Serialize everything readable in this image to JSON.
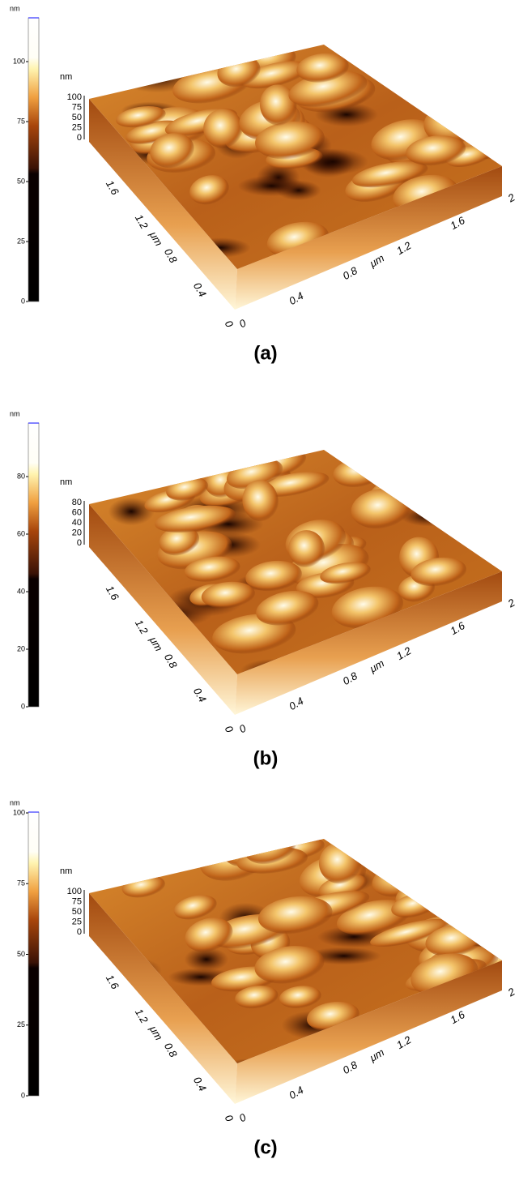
{
  "panels": [
    {
      "colorbar": {
        "unit": "nm",
        "ticks": [
          0,
          25,
          50,
          75,
          100
        ]
      },
      "z_axis": {
        "unit": "nm",
        "ticks": [
          0,
          25,
          50,
          75,
          100
        ]
      },
      "y_axis": {
        "label": "μm",
        "ticks": [
          0,
          0.4,
          0.8,
          1.2,
          1.6
        ]
      },
      "x_axis": {
        "label": "μm",
        "ticks": [
          0,
          0.4,
          0.8,
          1.2,
          1.6,
          2
        ]
      },
      "caption": "(a)"
    },
    {
      "colorbar": {
        "unit": "nm",
        "ticks": [
          0,
          20,
          40,
          60,
          80
        ]
      },
      "z_axis": {
        "unit": "nm",
        "ticks": [
          0,
          20,
          40,
          60,
          80
        ]
      },
      "y_axis": {
        "label": "μm",
        "ticks": [
          0,
          0.4,
          0.8,
          1.2,
          1.6
        ]
      },
      "x_axis": {
        "label": "μm",
        "ticks": [
          0,
          0.4,
          0.8,
          1.2,
          1.6,
          2
        ]
      },
      "caption": "(b)"
    },
    {
      "colorbar": {
        "unit": "nm",
        "ticks": [
          0,
          25,
          50,
          75,
          100
        ]
      },
      "z_axis": {
        "unit": "nm",
        "ticks": [
          0,
          25,
          50,
          75,
          100
        ]
      },
      "y_axis": {
        "label": "μm",
        "ticks": [
          0,
          0.4,
          0.8,
          1.2,
          1.6
        ]
      },
      "x_axis": {
        "label": "μm",
        "ticks": [
          0,
          0.4,
          0.8,
          1.2,
          1.6,
          2
        ]
      },
      "caption": "(c)"
    }
  ]
}
